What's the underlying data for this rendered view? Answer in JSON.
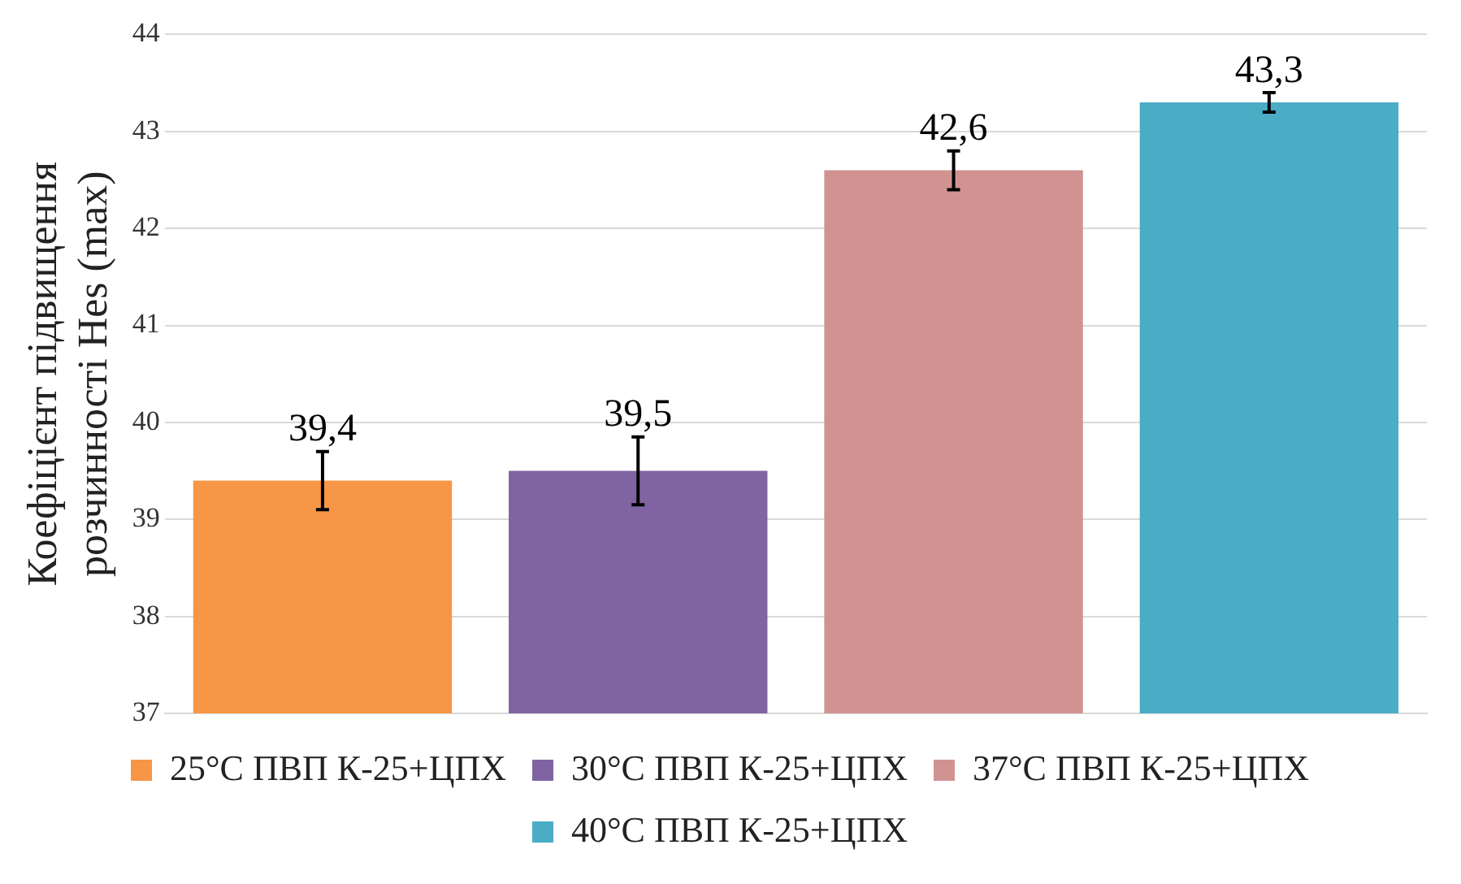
{
  "chart_data": {
    "type": "bar",
    "ylabel": "Коефіцієнт підвищення розчинності Hes (max)",
    "categories": [
      null,
      null,
      null,
      null
    ],
    "series": [
      {
        "name": "25°C ПВП К-25+ЦПХ",
        "color": "#f79646",
        "values": [
          39.4,
          null,
          null,
          null
        ],
        "errors": [
          0.3,
          null,
          null,
          null
        ],
        "value_labels": [
          "39,4",
          null,
          null,
          null
        ]
      },
      {
        "name": "30°C ПВП К-25+ЦПХ",
        "color": "#8064a2",
        "values": [
          null,
          39.5,
          null,
          null
        ],
        "errors": [
          null,
          0.35,
          null,
          null
        ],
        "value_labels": [
          null,
          "39,5",
          null,
          null
        ]
      },
      {
        "name": "37°C ПВП К-25+ЦПХ",
        "color": "#d19392",
        "values": [
          null,
          null,
          42.6,
          null
        ],
        "errors": [
          null,
          null,
          0.2,
          null
        ],
        "value_labels": [
          null,
          null,
          "42,6",
          null
        ]
      },
      {
        "name": "40°C ПВП К-25+ЦПХ",
        "color": "#4bacc6",
        "values": [
          null,
          null,
          null,
          43.3
        ],
        "errors": [
          null,
          null,
          null,
          0.1
        ],
        "value_labels": [
          null,
          null,
          null,
          "43,3"
        ]
      }
    ],
    "ylim": [
      37,
      44
    ],
    "yticks": [
      37,
      38,
      39,
      40,
      41,
      42,
      43,
      44
    ],
    "grid": "y",
    "legend": "bottom"
  }
}
